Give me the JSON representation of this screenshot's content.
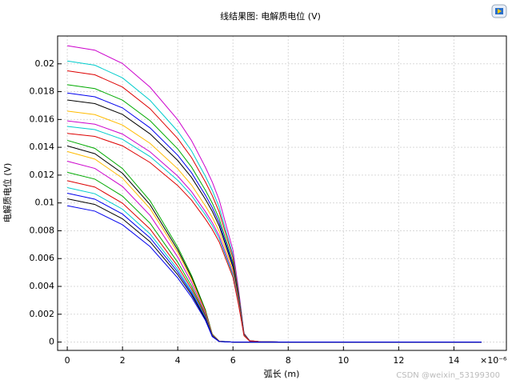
{
  "chart_data": {
    "type": "line",
    "title": "线结果图: 电解质电位 (V)",
    "x_label": "弧长 (m)",
    "y_label": "电解质电位 (V)",
    "x_multiplier": "×10⁻⁶",
    "watermark": "CSDN @weixin_53199300",
    "xlim": [
      -0.35,
      15.9
    ],
    "ylim": [
      -0.0006,
      0.022
    ],
    "xticks": [
      0,
      2,
      4,
      6,
      8,
      10,
      12,
      14
    ],
    "yticks": [
      0,
      0.002,
      0.004,
      0.006,
      0.008,
      0.01,
      0.012,
      0.014,
      0.016,
      0.018,
      0.02
    ],
    "grid": true,
    "x": [
      0,
      1,
      2,
      3,
      4,
      4.5,
      5,
      5.25,
      5.5,
      6,
      6.2,
      6.4,
      6.6,
      7,
      8,
      10,
      15
    ],
    "series": [
      {
        "color": "#cc00cc",
        "values": [
          0.0213,
          0.02098,
          0.02002,
          0.01832,
          0.01598,
          0.01448,
          0.01257,
          0.0115,
          0.01022,
          0.0066,
          0.00383,
          0.00064,
          0.00011,
          2e-05,
          0,
          0,
          0
        ]
      },
      {
        "color": "#00cccc",
        "values": [
          0.0202,
          0.0199,
          0.01899,
          0.01737,
          0.01515,
          0.01374,
          0.01192,
          0.01091,
          0.0097,
          0.00626,
          0.00364,
          0.00061,
          0.0001,
          2e-05,
          0,
          0,
          0
        ]
      },
      {
        "color": "#dd0000",
        "values": [
          0.0195,
          0.01921,
          0.01833,
          0.01677,
          0.01463,
          0.01326,
          0.01151,
          0.01053,
          0.00936,
          0.00605,
          0.00351,
          0.00059,
          0.0001,
          2e-05,
          0,
          0,
          0
        ]
      },
      {
        "color": "#00aa00",
        "values": [
          0.0185,
          0.01822,
          0.01739,
          0.01591,
          0.01388,
          0.01258,
          0.01092,
          0.00999,
          0.00888,
          0.00574,
          0.00333,
          0.00056,
          9e-05,
          2e-05,
          0,
          0,
          0
        ]
      },
      {
        "color": "#0000ee",
        "values": [
          0.0179,
          0.01763,
          0.01683,
          0.01539,
          0.01343,
          0.01217,
          0.01056,
          0.00967,
          0.00859,
          0.00555,
          0.00322,
          0.00054,
          9e-05,
          2e-05,
          0,
          0,
          0
        ]
      },
      {
        "color": "#000000",
        "values": [
          0.0174,
          0.01714,
          0.01636,
          0.01496,
          0.01305,
          0.01183,
          0.01027,
          0.0094,
          0.00835,
          0.00539,
          0.00313,
          0.00052,
          9e-05,
          2e-05,
          0,
          0,
          0
        ]
      },
      {
        "color": "#ffbb00",
        "values": [
          0.0166,
          0.01635,
          0.0156,
          0.01428,
          0.01245,
          0.01129,
          0.00979,
          0.00896,
          0.00797,
          0.00515,
          0.00299,
          0.0005,
          8e-05,
          2e-05,
          0,
          0,
          0
        ]
      },
      {
        "color": "#cc00cc",
        "values": [
          0.0159,
          0.01566,
          0.01495,
          0.01367,
          0.01193,
          0.01081,
          0.00938,
          0.00859,
          0.00763,
          0.00493,
          0.00286,
          0.00048,
          8e-05,
          2e-05,
          0,
          0,
          0
        ]
      },
      {
        "color": "#00cccc",
        "values": [
          0.0155,
          0.01527,
          0.01457,
          0.01333,
          0.01163,
          0.01054,
          0.00915,
          0.00837,
          0.00744,
          0.00481,
          0.00279,
          0.00047,
          8e-05,
          2e-05,
          0,
          0,
          0
        ]
      },
      {
        "color": "#dd0000",
        "values": [
          0.015,
          0.01478,
          0.0141,
          0.0129,
          0.01125,
          0.0102,
          0.00885,
          0.0081,
          0.0072,
          0.00465,
          0.0027,
          0.00045,
          8e-05,
          2e-05,
          0,
          0,
          0
        ]
      },
      {
        "color": "#00aa00",
        "values": [
          0.0145,
          0.01392,
          0.01247,
          0.01015,
          0.00682,
          0.00479,
          0.00232,
          0.00058,
          6e-05,
          0,
          0,
          0,
          0,
          0,
          0,
          0,
          0
        ]
      },
      {
        "color": "#000000",
        "values": [
          0.0141,
          0.01354,
          0.01213,
          0.00987,
          0.00663,
          0.00465,
          0.00226,
          0.00056,
          6e-05,
          0,
          0,
          0,
          0,
          0,
          0,
          0,
          0
        ]
      },
      {
        "color": "#ffbb00",
        "values": [
          0.0137,
          0.01315,
          0.01178,
          0.00959,
          0.00644,
          0.00452,
          0.00219,
          0.00055,
          5e-05,
          0,
          0,
          0,
          0,
          0,
          0,
          0,
          0
        ]
      },
      {
        "color": "#cc00cc",
        "values": [
          0.013,
          0.01248,
          0.01118,
          0.0091,
          0.00611,
          0.00429,
          0.00208,
          0.00052,
          5e-05,
          0,
          0,
          0,
          0,
          0,
          0,
          0,
          0
        ]
      },
      {
        "color": "#00aa00",
        "values": [
          0.0122,
          0.01171,
          0.01049,
          0.00854,
          0.00573,
          0.00403,
          0.00195,
          0.00049,
          5e-05,
          0,
          0,
          0,
          0,
          0,
          0,
          0,
          0
        ]
      },
      {
        "color": "#dd0000",
        "values": [
          0.0116,
          0.01114,
          0.00998,
          0.00812,
          0.00545,
          0.00383,
          0.00186,
          0.00046,
          5e-05,
          0,
          0,
          0,
          0,
          0,
          0,
          0,
          0
        ]
      },
      {
        "color": "#00cccc",
        "values": [
          0.0111,
          0.01066,
          0.00955,
          0.00777,
          0.00522,
          0.00366,
          0.00178,
          0.00044,
          4e-05,
          0,
          0,
          0,
          0,
          0,
          0,
          0,
          0
        ]
      },
      {
        "color": "#0000ee",
        "values": [
          0.0107,
          0.01027,
          0.0092,
          0.00749,
          0.00503,
          0.00353,
          0.00171,
          0.00043,
          4e-05,
          0,
          0,
          0,
          0,
          0,
          0,
          0,
          0
        ]
      },
      {
        "color": "#000000",
        "values": [
          0.0103,
          0.00989,
          0.00886,
          0.00721,
          0.00484,
          0.0034,
          0.00165,
          0.00041,
          4e-05,
          0,
          0,
          0,
          0,
          0,
          0,
          0,
          0
        ]
      },
      {
        "color": "#0000ee",
        "values": [
          0.0098,
          0.00941,
          0.00843,
          0.00686,
          0.00461,
          0.00323,
          0.00157,
          0.00039,
          4e-05,
          0,
          0,
          0,
          0,
          0,
          0,
          0,
          0
        ]
      }
    ]
  }
}
